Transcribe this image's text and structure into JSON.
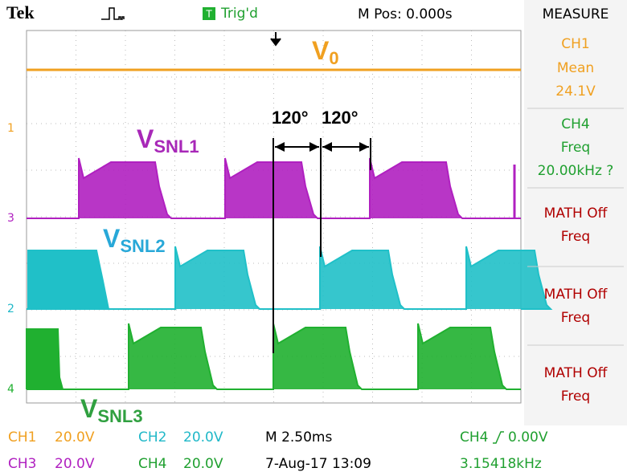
{
  "header": {
    "brand": "Tek",
    "trigger": "Trig'd",
    "position": "M Pos: 0.000s",
    "menu": "MEASURE"
  },
  "traces": [
    {
      "marker": "1",
      "label": "V",
      "label_sub": "0"
    },
    {
      "marker": "3",
      "label": "V",
      "label_sub": "SNL1"
    },
    {
      "marker": "2",
      "label": "V",
      "label_sub": "SNL2"
    },
    {
      "marker": "4",
      "label": "V",
      "label_sub": "SNL3"
    }
  ],
  "angles": [
    "120°",
    "120°"
  ],
  "measurements": [
    [
      "CH1",
      "Mean",
      "24.1V"
    ],
    [
      "CH4",
      "Freq",
      "20.00kHz ?"
    ],
    [
      "MATH Off",
      "Freq"
    ],
    [
      "MATH Off",
      "Freq"
    ],
    [
      "MATH Off",
      "Freq"
    ]
  ],
  "footer": {
    "row1": [
      "CH1",
      "20.0V",
      "CH2",
      "20.0V",
      "M 2.50ms",
      "CH4",
      "0.00V"
    ],
    "row2": [
      "CH3",
      "20.0V",
      "CH4",
      "20.0V",
      "7-Aug-17 13:09",
      "3.15418kHz"
    ]
  }
}
